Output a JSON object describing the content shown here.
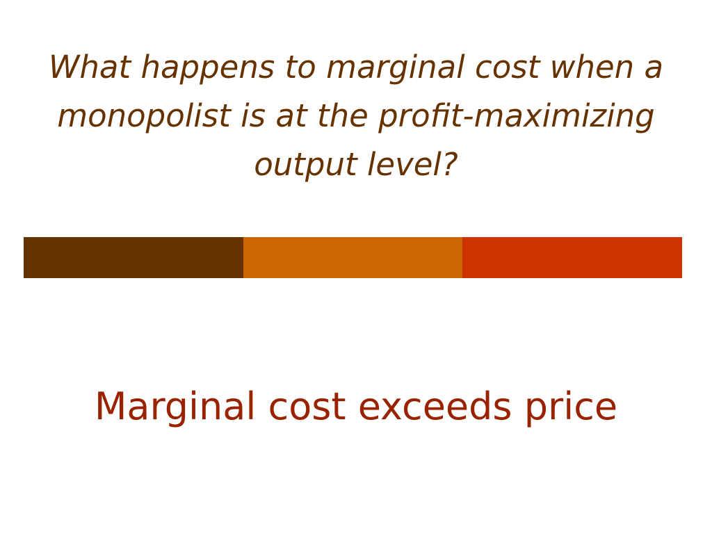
{
  "slide": {
    "question": "What happens to marginal cost when a monopolist is at the profit-maximizing output level?",
    "answer": "Marginal cost exceeds price"
  }
}
